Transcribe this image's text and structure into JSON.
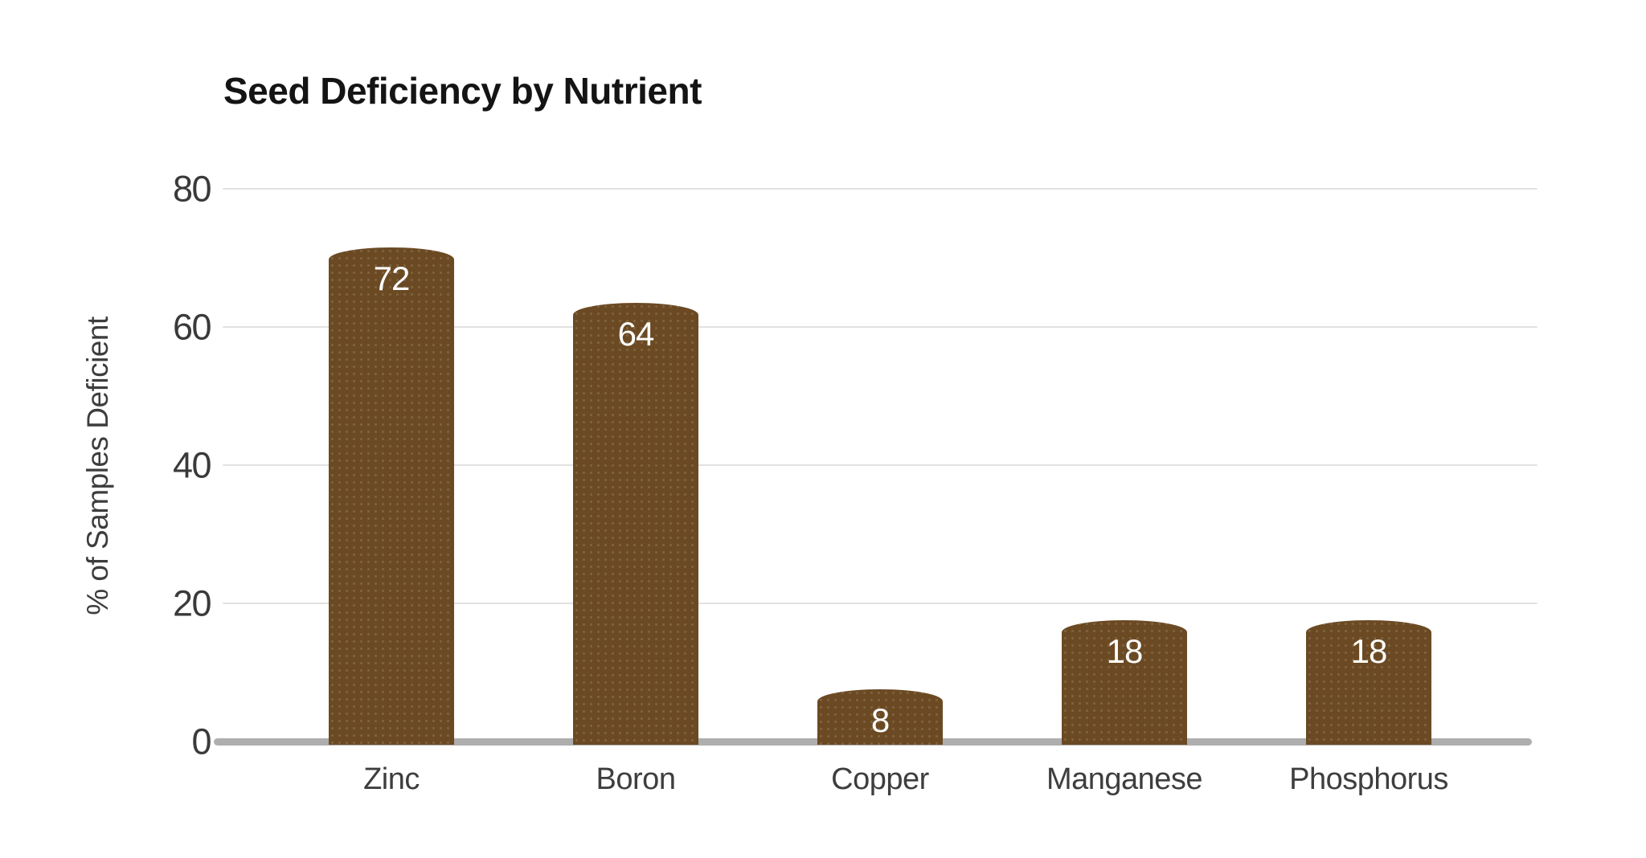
{
  "chart_data": {
    "type": "bar",
    "title": "Seed Deficiency by Nutrient",
    "ylabel": "% of Samples Deficient",
    "xlabel": "",
    "categories": [
      "Zinc",
      "Boron",
      "Copper",
      "Manganese",
      "Phosphorus"
    ],
    "values": [
      72,
      64,
      8,
      18,
      18
    ],
    "yticks": [
      0,
      20,
      40,
      60,
      80
    ],
    "ylim": [
      0,
      80
    ],
    "grid": "horizontal",
    "legend": "none",
    "colors": {
      "bar": "#6B4A23",
      "value_label": "#FFFFFF",
      "gridline": "#E3E2E0",
      "axis_line": "#AEAEAE",
      "tick_text": "#3A3A3A",
      "category_text": "#3E3E3E",
      "title_text": "#141414",
      "background": "#FFFFFF"
    }
  }
}
